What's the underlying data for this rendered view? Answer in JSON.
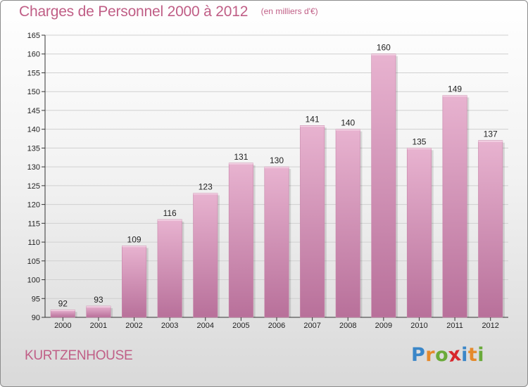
{
  "header": {
    "title": "Charges de Personnel 2000 à 2012",
    "subtitle": "(en milliers d'€)"
  },
  "footer": {
    "city": "KURTZENHOUSE",
    "logo_letters": [
      {
        "ch": "P",
        "color": "#3a86c8"
      },
      {
        "ch": "r",
        "color": "#e58a2c"
      },
      {
        "ch": "o",
        "color": "#6aaa3a"
      },
      {
        "ch": "x",
        "color": "#d8262c"
      },
      {
        "ch": "i",
        "color": "#3a86c8"
      },
      {
        "ch": "t",
        "color": "#e58a2c"
      },
      {
        "ch": "i",
        "color": "#6aaa3a"
      }
    ]
  },
  "chart_data": {
    "type": "bar",
    "title": "Charges de Personnel 2000 à 2012",
    "subtitle": "(en milliers d'€)",
    "categories": [
      "2000",
      "2001",
      "2002",
      "2003",
      "2004",
      "2005",
      "2006",
      "2007",
      "2008",
      "2009",
      "2010",
      "2011",
      "2012"
    ],
    "values": [
      92,
      93,
      109,
      116,
      123,
      131,
      130,
      141,
      140,
      160,
      135,
      149,
      137
    ],
    "ylim": [
      90,
      165
    ],
    "yticks": [
      90,
      95,
      100,
      105,
      110,
      115,
      120,
      125,
      130,
      135,
      140,
      145,
      150,
      155,
      160,
      165
    ],
    "grid": "horizontal",
    "bar_color": "#d98fb6",
    "bar_color_light": "#e8b3d0",
    "bar_color_dark": "#b8709a"
  }
}
